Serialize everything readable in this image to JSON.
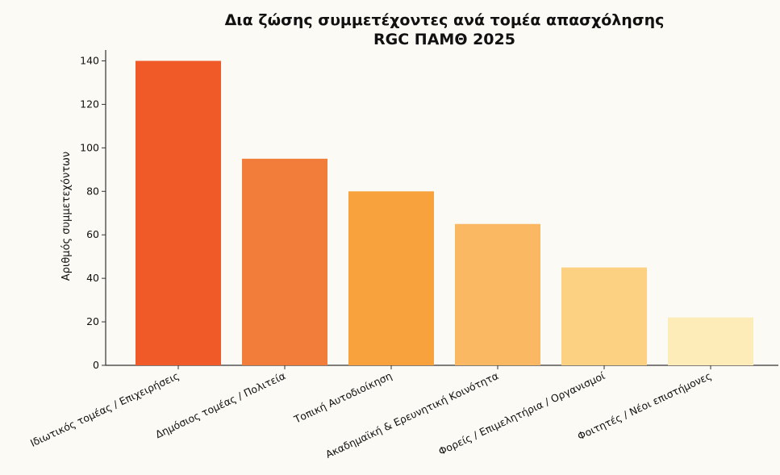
{
  "chart_data": {
    "type": "bar",
    "title": "Δια ζώσης συμμετέχοντες ανά τομέα απασχόλησης",
    "subtitle": "RGC ΠΑΜΘ 2025",
    "xlabel": "",
    "ylabel": "Αριθμός συμμετεχόντων",
    "ylim": [
      0,
      145
    ],
    "yticks": [
      "0",
      "20",
      "40",
      "60",
      "80",
      "100",
      "120",
      "140"
    ],
    "grid": false,
    "categories": [
      "Ιδιωτικός τομέας / Επιχειρήσεις",
      "Δημόσιος τομέας / Πολιτεία",
      "Τοπική Αυτοδιοίκηση",
      "Ακαδημαϊκή & Ερευνητική Κοινότητα",
      "Φορείς / Επιμελητήρια / Οργανισμοί",
      "Φοιτητές / Νέοι επιστήμονες"
    ],
    "values": [
      140,
      95,
      80,
      65,
      45,
      22
    ],
    "colors": [
      "#f05a28",
      "#f27c3a",
      "#f7a23c",
      "#fbb862",
      "#fcd282",
      "#fdebb8"
    ]
  }
}
